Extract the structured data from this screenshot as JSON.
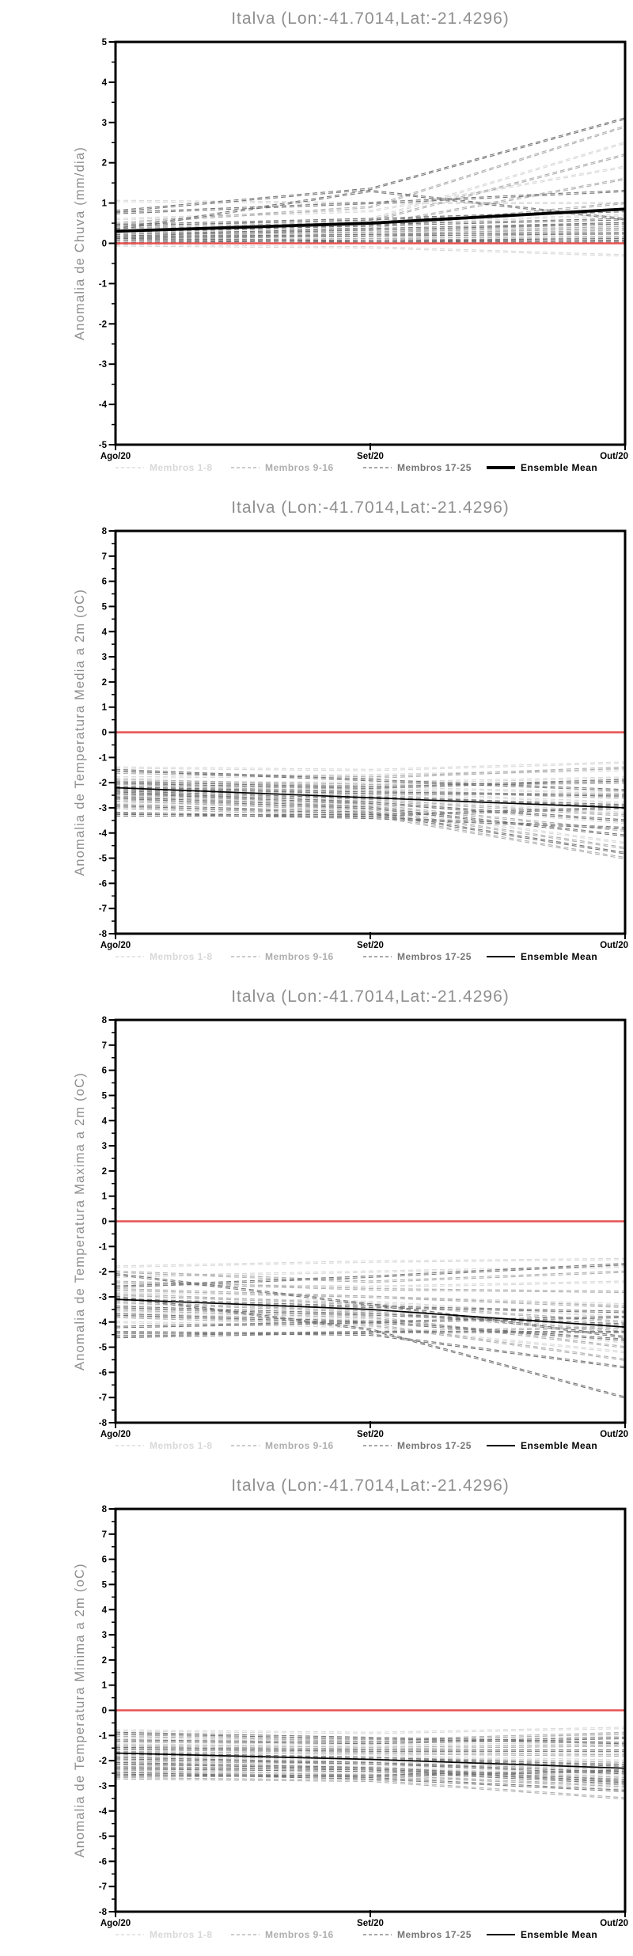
{
  "page_title": "Italva (Lon:-41.7014,Lat:-21.4296)",
  "location": {
    "name": "Italva",
    "lon": "-41.7014",
    "lat": "-21.4296"
  },
  "colors": {
    "title_gray": "#8f8f8f",
    "axis_black": "#000000",
    "zero_line_red": "#e85151",
    "group1_gray": "#d8d8d8",
    "group2_gray": "#aeaeae",
    "group3_gray": "#757575",
    "mean_black": "#000000"
  },
  "legend": {
    "items": [
      {
        "label": "Membros 1-8",
        "color": "#d8d8d8",
        "style": "dashed"
      },
      {
        "label": "Membros 9-16",
        "color": "#aeaeae",
        "style": "dashed"
      },
      {
        "label": "Membros 17-25",
        "color": "#757575",
        "style": "dashed"
      },
      {
        "label": "Ensemble Mean",
        "color": "#000000",
        "style": "solid"
      }
    ],
    "position": "bottom"
  },
  "chart_data": [
    {
      "type": "line",
      "title": "Italva (Lon:-41.7014,Lat:-21.4296)",
      "ylabel": "Anomalia de Chuva (mm/dia)",
      "xlabel": "",
      "x": [
        "Ago/20",
        "Set/20",
        "Out/20"
      ],
      "ylim": [
        -5,
        5
      ],
      "yticks": [
        5,
        4,
        3,
        2,
        1,
        0,
        -1,
        -2,
        -3,
        -4,
        -5
      ],
      "grid": false,
      "legend_position": "bottom",
      "zero_line_value": 0,
      "mean_line_width": 3.8,
      "series_groups": [
        {
          "name": "Membros 1-8",
          "color": "#d8d8d8",
          "members": [
            [
              1.05,
              1.0,
              1.0
            ],
            [
              0.6,
              0.8,
              1.9
            ],
            [
              0.45,
              0.6,
              2.5
            ],
            [
              0.3,
              0.5,
              0.7
            ],
            [
              0.2,
              0.3,
              0.45
            ],
            [
              0.1,
              0.15,
              0.2
            ],
            [
              0.0,
              0.1,
              0.3
            ],
            [
              -0.05,
              -0.1,
              -0.3
            ]
          ]
        },
        {
          "name": "Membros 9-16",
          "color": "#aeaeae",
          "members": [
            [
              0.5,
              0.9,
              2.9
            ],
            [
              0.4,
              0.55,
              2.2
            ],
            [
              0.35,
              0.45,
              1.6
            ],
            [
              0.3,
              0.4,
              1.0
            ],
            [
              0.25,
              0.3,
              0.5
            ],
            [
              0.15,
              0.25,
              0.4
            ],
            [
              0.1,
              0.2,
              0.35
            ],
            [
              0.05,
              0.1,
              0.15
            ]
          ]
        },
        {
          "name": "Membros 17-25",
          "color": "#757575",
          "members": [
            [
              0.8,
              1.35,
              3.1
            ],
            [
              0.75,
              1.0,
              1.3
            ],
            [
              0.35,
              1.3,
              0.6
            ],
            [
              0.45,
              0.6,
              0.8
            ],
            [
              0.3,
              0.45,
              0.6
            ],
            [
              0.2,
              0.35,
              0.5
            ],
            [
              0.15,
              0.2,
              0.25
            ],
            [
              0.1,
              0.05,
              0.05
            ],
            [
              0.0,
              0.05,
              0.1
            ]
          ]
        }
      ],
      "ensemble_mean": {
        "name": "Ensemble Mean",
        "color": "#000000",
        "values": [
          0.3,
          0.5,
          0.85
        ]
      }
    },
    {
      "type": "line",
      "title": "Italva (Lon:-41.7014,Lat:-21.4296)",
      "ylabel": "Anomalia de Temperatura Media a 2m (oC)",
      "xlabel": "",
      "x": [
        "Ago/20",
        "Set/20",
        "Out/20"
      ],
      "ylim": [
        -8,
        8
      ],
      "yticks": [
        8,
        7,
        6,
        5,
        4,
        3,
        2,
        1,
        0,
        -1,
        -2,
        -3,
        -4,
        -5,
        -6,
        -7,
        -8
      ],
      "grid": false,
      "legend_position": "bottom",
      "zero_line_value": 0,
      "mean_line_width": 1.7,
      "series_groups": [
        {
          "name": "Membros 1-8",
          "color": "#d8d8d8",
          "members": [
            [
              -1.4,
              -1.5,
              -1.2
            ],
            [
              -1.8,
              -1.7,
              -1.5
            ],
            [
              -2.0,
              -2.0,
              -1.8
            ],
            [
              -2.1,
              -2.2,
              -2.4
            ],
            [
              -2.3,
              -2.4,
              -2.8
            ],
            [
              -2.5,
              -2.6,
              -3.2
            ],
            [
              -2.6,
              -2.8,
              -3.6
            ],
            [
              -2.8,
              -3.0,
              -4.4
            ]
          ]
        },
        {
          "name": "Membros 9-16",
          "color": "#aeaeae",
          "members": [
            [
              -1.6,
              -1.8,
              -1.4
            ],
            [
              -1.9,
              -2.1,
              -2.0
            ],
            [
              -2.1,
              -2.3,
              -2.6
            ],
            [
              -2.2,
              -2.5,
              -3.0
            ],
            [
              -2.4,
              -2.7,
              -3.3
            ],
            [
              -2.5,
              -2.9,
              -3.9
            ],
            [
              -2.7,
              -3.1,
              -4.6
            ],
            [
              -3.0,
              -3.3,
              -5.0
            ]
          ]
        },
        {
          "name": "Membros 17-25",
          "color": "#757575",
          "members": [
            [
              -1.5,
              -1.9,
              -2.3
            ],
            [
              -2.0,
              -2.2,
              -1.9
            ],
            [
              -2.2,
              -2.4,
              -2.5
            ],
            [
              -2.3,
              -2.6,
              -2.9
            ],
            [
              -2.4,
              -2.8,
              -3.5
            ],
            [
              -2.6,
              -3.0,
              -4.1
            ],
            [
              -2.9,
              -3.2,
              -4.8
            ],
            [
              -3.2,
              -3.4,
              -3.8
            ],
            [
              -3.3,
              -3.3,
              -3.0
            ]
          ]
        }
      ],
      "ensemble_mean": {
        "name": "Ensemble Mean",
        "color": "#000000",
        "values": [
          -2.2,
          -2.6,
          -3.0
        ]
      }
    },
    {
      "type": "line",
      "title": "Italva (Lon:-41.7014,Lat:-21.4296)",
      "ylabel": "Anomalia de Temperatura Maxima a 2m (oC)",
      "xlabel": "",
      "x": [
        "Ago/20",
        "Set/20",
        "Out/20"
      ],
      "ylim": [
        -8,
        8
      ],
      "yticks": [
        8,
        7,
        6,
        5,
        4,
        3,
        2,
        1,
        0,
        -1,
        -2,
        -3,
        -4,
        -5,
        -6,
        -7,
        -8
      ],
      "grid": false,
      "legend_position": "bottom",
      "zero_line_value": 0,
      "mean_line_width": 1.7,
      "series_groups": [
        {
          "name": "Membros 1-8",
          "color": "#d8d8d8",
          "members": [
            [
              -1.8,
              -1.6,
              -1.5
            ],
            [
              -2.2,
              -2.0,
              -1.8
            ],
            [
              -2.5,
              -2.6,
              -2.4
            ],
            [
              -2.8,
              -3.0,
              -3.3
            ],
            [
              -3.0,
              -3.2,
              -3.8
            ],
            [
              -3.3,
              -3.5,
              -4.3
            ],
            [
              -3.6,
              -3.9,
              -4.8
            ],
            [
              -4.0,
              -4.2,
              -5.2
            ]
          ]
        },
        {
          "name": "Membros 9-16",
          "color": "#aeaeae",
          "members": [
            [
              -2.0,
              -2.4,
              -2.0
            ],
            [
              -2.4,
              -2.7,
              -2.8
            ],
            [
              -2.7,
              -3.0,
              -3.4
            ],
            [
              -2.9,
              -3.3,
              -4.0
            ],
            [
              -3.2,
              -3.6,
              -4.4
            ],
            [
              -3.5,
              -3.8,
              -5.0
            ],
            [
              -3.8,
              -4.1,
              -5.5
            ],
            [
              -4.5,
              -4.4,
              -4.2
            ]
          ]
        },
        {
          "name": "Membros 17-25",
          "color": "#757575",
          "members": [
            [
              -2.1,
              -3.3,
              -4.6
            ],
            [
              -2.6,
              -2.2,
              -1.7
            ],
            [
              -3.0,
              -4.3,
              -7.0
            ],
            [
              -3.1,
              -3.4,
              -3.6
            ],
            [
              -3.4,
              -3.7,
              -4.1
            ],
            [
              -3.7,
              -4.0,
              -4.7
            ],
            [
              -4.2,
              -4.0,
              -3.8
            ],
            [
              -4.4,
              -4.5,
              -5.8
            ],
            [
              -4.6,
              -4.4,
              -4.4
            ]
          ]
        }
      ],
      "ensemble_mean": {
        "name": "Ensemble Mean",
        "color": "#000000",
        "values": [
          -3.1,
          -3.5,
          -4.2
        ]
      }
    },
    {
      "type": "line",
      "title": "Italva (Lon:-41.7014,Lat:-21.4296)",
      "ylabel": "Anomalia de Temperatura Minima a 2m (oC)",
      "xlabel": "",
      "x": [
        "Ago/20",
        "Set/20",
        "Out/20"
      ],
      "ylim": [
        -8,
        8
      ],
      "yticks": [
        8,
        7,
        6,
        5,
        4,
        3,
        2,
        1,
        0,
        -1,
        -2,
        -3,
        -4,
        -5,
        -6,
        -7,
        -8
      ],
      "grid": false,
      "legend_position": "bottom",
      "zero_line_value": 0,
      "mean_line_width": 1.7,
      "series_groups": [
        {
          "name": "Membros 1-8",
          "color": "#d8d8d8",
          "members": [
            [
              -0.8,
              -0.9,
              -0.7
            ],
            [
              -1.1,
              -1.2,
              -1.0
            ],
            [
              -1.3,
              -1.4,
              -1.3
            ],
            [
              -1.5,
              -1.6,
              -1.7
            ],
            [
              -1.7,
              -1.8,
              -2.0
            ],
            [
              -1.9,
              -2.0,
              -2.3
            ],
            [
              -2.1,
              -2.2,
              -2.6
            ],
            [
              -2.3,
              -2.5,
              -3.1
            ]
          ]
        },
        {
          "name": "Membros 9-16",
          "color": "#aeaeae",
          "members": [
            [
              -1.0,
              -1.2,
              -0.9
            ],
            [
              -1.4,
              -1.5,
              -1.4
            ],
            [
              -1.6,
              -1.7,
              -1.8
            ],
            [
              -1.8,
              -1.9,
              -2.1
            ],
            [
              -2.0,
              -2.1,
              -2.4
            ],
            [
              -2.2,
              -2.3,
              -2.7
            ],
            [
              -2.4,
              -2.6,
              -3.0
            ],
            [
              -2.7,
              -2.8,
              -3.5
            ]
          ]
        },
        {
          "name": "Membros 17-25",
          "color": "#757575",
          "members": [
            [
              -0.9,
              -1.1,
              -1.3
            ],
            [
              -1.2,
              -1.3,
              -1.1
            ],
            [
              -1.5,
              -1.6,
              -1.6
            ],
            [
              -1.7,
              -1.9,
              -2.2
            ],
            [
              -1.9,
              -2.1,
              -2.5
            ],
            [
              -2.1,
              -2.3,
              -2.8
            ],
            [
              -2.3,
              -2.4,
              -2.9
            ],
            [
              -2.5,
              -2.7,
              -3.2
            ],
            [
              -2.6,
              -2.6,
              -2.4
            ]
          ]
        }
      ],
      "ensemble_mean": {
        "name": "Ensemble Mean",
        "color": "#000000",
        "values": [
          -1.7,
          -1.95,
          -2.3
        ]
      }
    }
  ]
}
